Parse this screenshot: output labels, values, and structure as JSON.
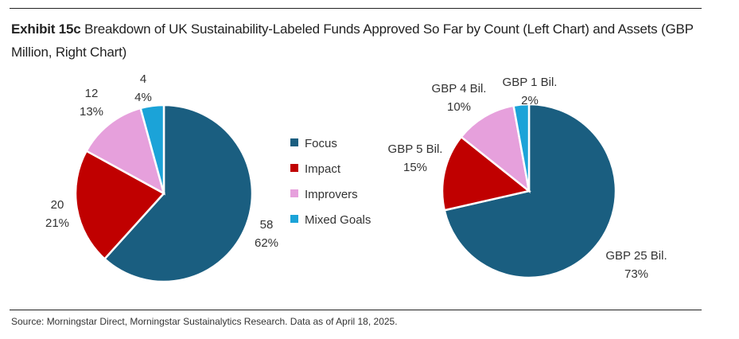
{
  "header": {
    "exhibit": "Exhibit 15c",
    "title": "Breakdown of UK Sustainability-Labeled Funds Approved So Far by Count (Left Chart) and Assets (GBP Million, Right Chart)"
  },
  "footer": {
    "source": "Source: Morningstar Direct, Morningstar Sustainalytics Research. Data as of April 18, 2025."
  },
  "legend": {
    "placement": "center",
    "items": [
      {
        "label": "Focus",
        "color": "#1a5e80"
      },
      {
        "label": "Impact",
        "color": "#c00000"
      },
      {
        "label": "Improvers",
        "color": "#e6a0dc"
      },
      {
        "label": "Mixed Goals",
        "color": "#1ba3d8"
      }
    ]
  },
  "chart_data": [
    {
      "type": "pie",
      "title": "",
      "categories": [
        "Focus",
        "Impact",
        "Improvers",
        "Mixed Goals"
      ],
      "values": [
        58,
        20,
        12,
        4
      ],
      "value_labels": [
        "58",
        "20",
        "12",
        "4"
      ],
      "percent_labels": [
        "62%",
        "21%",
        "13%",
        "4%"
      ],
      "colors": [
        "#1a5e80",
        "#c00000",
        "#e6a0dc",
        "#1ba3d8"
      ]
    },
    {
      "type": "pie",
      "title": "",
      "categories": [
        "Focus",
        "Impact",
        "Improvers",
        "Mixed Goals"
      ],
      "values": [
        25,
        5,
        4,
        1
      ],
      "value_labels": [
        "GBP 25 Bil.",
        "GBP 5 Bil.",
        "GBP 4 Bil.",
        "GBP 1 Bil."
      ],
      "percent_labels": [
        "73%",
        "15%",
        "10%",
        "2%"
      ],
      "colors": [
        "#1a5e80",
        "#c00000",
        "#e6a0dc",
        "#1ba3d8"
      ]
    }
  ]
}
